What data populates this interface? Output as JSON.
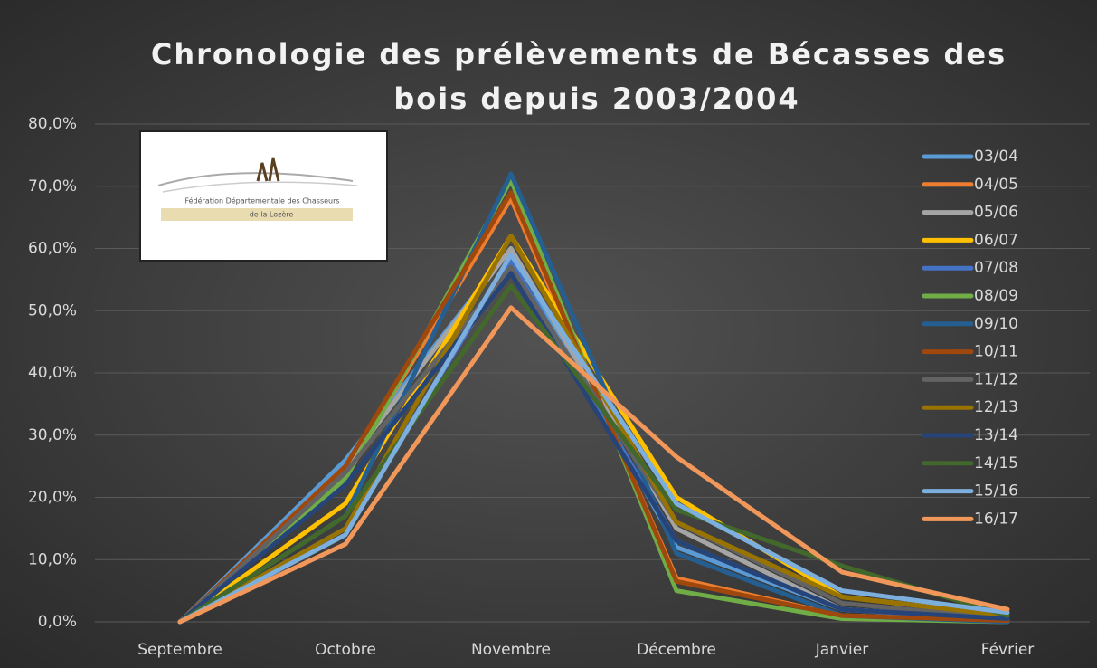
{
  "chart_data": {
    "type": "line",
    "title": [
      "Chronologie des prélèvements de Bécasses des",
      "bois depuis 2003/2004"
    ],
    "logo": [
      "Fédération Départementale des Chasseurs",
      "de la Lozère"
    ],
    "categories": [
      "Septembre",
      "Octobre",
      "Novembre",
      "Décembre",
      "Janvier",
      "Février"
    ],
    "ylim": [
      0,
      80
    ],
    "yticks": [
      {
        "value": 0,
        "label": "0,0%"
      },
      {
        "value": 10,
        "label": "10,0%"
      },
      {
        "value": 20,
        "label": "20,0%"
      },
      {
        "value": 30,
        "label": "30,0%"
      },
      {
        "value": 40,
        "label": "40,0%"
      },
      {
        "value": 50,
        "label": "50,0%"
      },
      {
        "value": 60,
        "label": "60,0%"
      },
      {
        "value": 70,
        "label": "70,0%"
      },
      {
        "value": 80,
        "label": "80,0%"
      }
    ],
    "grid": true,
    "legend": "right",
    "series": [
      {
        "name": "03/04",
        "color": "#5b9bd5",
        "values": [
          0,
          26,
          60,
          12,
          2,
          0.5
        ]
      },
      {
        "name": "04/05",
        "color": "#ed7d31",
        "values": [
          0,
          24,
          68,
          7,
          1,
          0.3
        ]
      },
      {
        "name": "05/06",
        "color": "#a5a5a5",
        "values": [
          0,
          25,
          60,
          15,
          2,
          0.5
        ]
      },
      {
        "name": "06/07",
        "color": "#ffc000",
        "values": [
          0,
          19,
          62,
          20,
          4,
          1
        ]
      },
      {
        "name": "07/08",
        "color": "#4472c4",
        "values": [
          0,
          15,
          58,
          13,
          2,
          0.3
        ]
      },
      {
        "name": "08/09",
        "color": "#70ad47",
        "values": [
          0,
          23,
          71,
          5,
          0.5,
          0
        ]
      },
      {
        "name": "09/10",
        "color": "#255e91",
        "values": [
          0,
          17,
          72,
          11,
          1,
          0
        ]
      },
      {
        "name": "10/11",
        "color": "#9e480e",
        "values": [
          0,
          25,
          69,
          6.5,
          1,
          0.2
        ]
      },
      {
        "name": "11/12",
        "color": "#636363",
        "values": [
          0,
          24,
          57,
          16,
          3,
          0.5
        ]
      },
      {
        "name": "12/13",
        "color": "#997300",
        "values": [
          0,
          15,
          62,
          16,
          4,
          1
        ]
      },
      {
        "name": "13/14",
        "color": "#264478",
        "values": [
          0,
          22,
          56,
          13,
          2,
          0.5
        ]
      },
      {
        "name": "14/15",
        "color": "#43682b",
        "values": [
          0,
          17,
          54,
          18,
          9,
          1
        ]
      },
      {
        "name": "15/16",
        "color": "#7cafdd",
        "values": [
          0,
          14,
          59,
          19,
          5,
          1.5
        ]
      },
      {
        "name": "16/17",
        "color": "#f1975a",
        "values": [
          0,
          12.5,
          50.5,
          26.5,
          8,
          2
        ]
      }
    ]
  }
}
